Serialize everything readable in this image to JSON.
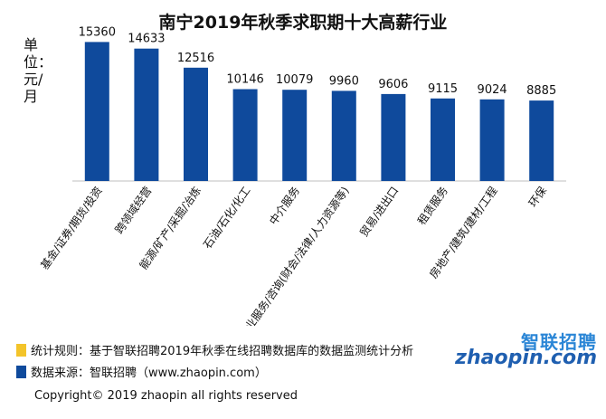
{
  "chart_data": {
    "type": "bar",
    "title": "南宁2019年秋季求职期十大高薪行业",
    "ylabel": "单位：元/月",
    "categories": [
      "基金/证券/期货/投资",
      "跨领域经营",
      "能源/矿产/采掘/冶炼",
      "石油/石化/化工",
      "中介服务",
      "专业服务/咨询(财会/法律/人力资源等)",
      "贸易/进出口",
      "租赁服务",
      "房地产/建筑/建材/工程",
      "环保"
    ],
    "values": [
      15360,
      14633,
      12516,
      10146,
      10079,
      9960,
      9606,
      9115,
      9024,
      8885
    ],
    "ylim": [
      0,
      17000
    ],
    "bar_color": "#0f4a9c",
    "grid": false
  },
  "legend": [
    {
      "label": "统计规则：基于智联招聘2019年秋季在线招聘数据库的数据监测统计分析",
      "color": "#f3c42a"
    },
    {
      "label": "数据来源：智联招聘（www.zhaopin.com）",
      "color": "#0f4a9c"
    }
  ],
  "copyright": "Copyright© 2019 zhaopin all rights reserved",
  "logo": {
    "top": "智联招聘",
    "bottom": "zhaopin.com"
  }
}
